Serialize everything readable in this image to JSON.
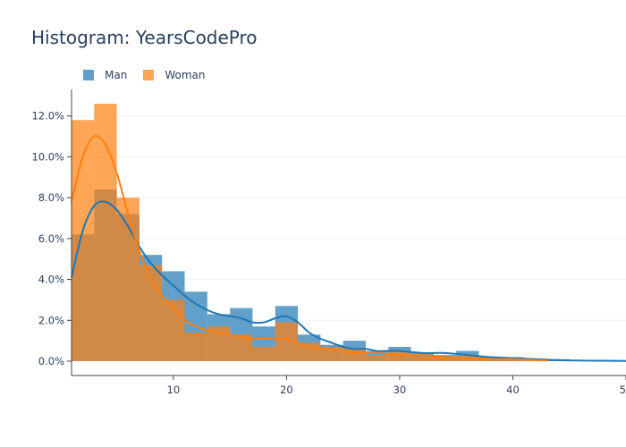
{
  "title": "Histogram: YearsCodePro",
  "chart_data": {
    "type": "bar",
    "title": "Histogram: YearsCodePro",
    "xlabel": "",
    "ylabel": "",
    "xlim": [
      1,
      50
    ],
    "ylim": [
      -0.007,
      0.133
    ],
    "x_ticks": [
      10,
      20,
      30,
      40,
      50
    ],
    "y_ticks": [
      0,
      0.02,
      0.04,
      0.06,
      0.08,
      0.1,
      0.12
    ],
    "y_tick_labels": [
      "0.0%",
      "2.0%",
      "4.0%",
      "6.0%",
      "8.0%",
      "10.0%",
      "12.0%"
    ],
    "bin_width": 2,
    "grid": "horizontal",
    "legend_position": "top-left",
    "series": [
      {
        "name": "Man",
        "color": "#1f77b4",
        "bin_starts": [
          1,
          3,
          5,
          7,
          9,
          11,
          13,
          15,
          17,
          19,
          21,
          23,
          25,
          27,
          29,
          31,
          33,
          35,
          37,
          39,
          41,
          43,
          45,
          47,
          49
        ],
        "values": [
          0.062,
          0.084,
          0.072,
          0.052,
          0.044,
          0.034,
          0.023,
          0.026,
          0.017,
          0.027,
          0.013,
          0.008,
          0.01,
          0.005,
          0.007,
          0.004,
          0.003,
          0.005,
          0.002,
          0.002,
          0.001,
          0.001,
          0.0005,
          0.0005,
          0.0003
        ],
        "kde_x": [
          1,
          2,
          3,
          4,
          5,
          6,
          7,
          8,
          9,
          10,
          11,
          12,
          13,
          14,
          15,
          16,
          17,
          18,
          19,
          20,
          21,
          22,
          23,
          24,
          25,
          26,
          27,
          28,
          29,
          30,
          32,
          34,
          36,
          38,
          40,
          42,
          44,
          46,
          48,
          50
        ],
        "kde_y": [
          0.041,
          0.064,
          0.076,
          0.078,
          0.074,
          0.066,
          0.056,
          0.048,
          0.042,
          0.037,
          0.032,
          0.028,
          0.025,
          0.023,
          0.022,
          0.021,
          0.019,
          0.019,
          0.021,
          0.022,
          0.019,
          0.014,
          0.011,
          0.009,
          0.007,
          0.006,
          0.006,
          0.005,
          0.005,
          0.005,
          0.004,
          0.004,
          0.003,
          0.002,
          0.0015,
          0.001,
          0.0005,
          0.0003,
          0.0002,
          0.0001
        ]
      },
      {
        "name": "Woman",
        "color": "#ff7f0e",
        "bin_starts": [
          1,
          3,
          5,
          7,
          9,
          11,
          13,
          15,
          17,
          19,
          21,
          23,
          25,
          27,
          29,
          31,
          33,
          35,
          37,
          39,
          41
        ],
        "values": [
          0.118,
          0.126,
          0.08,
          0.047,
          0.03,
          0.014,
          0.017,
          0.013,
          0.007,
          0.019,
          0.009,
          0.007,
          0.006,
          0.003,
          0.005,
          0.003,
          0.002,
          0.002,
          0.002,
          0.001,
          0.001
        ],
        "kde_x": [
          1,
          2,
          3,
          4,
          5,
          6,
          7,
          8,
          9,
          10,
          11,
          12,
          13,
          14,
          15,
          16,
          17,
          18,
          19,
          20,
          21,
          22,
          23,
          24,
          25,
          26,
          28,
          30,
          32,
          34,
          36,
          38,
          40,
          42,
          43
        ],
        "kde_y": [
          0.078,
          0.1,
          0.11,
          0.106,
          0.092,
          0.072,
          0.054,
          0.04,
          0.032,
          0.026,
          0.02,
          0.017,
          0.015,
          0.014,
          0.013,
          0.012,
          0.011,
          0.011,
          0.011,
          0.011,
          0.009,
          0.007,
          0.006,
          0.005,
          0.005,
          0.004,
          0.004,
          0.003,
          0.003,
          0.002,
          0.002,
          0.001,
          0.001,
          0.0005,
          0.0003
        ]
      }
    ]
  }
}
